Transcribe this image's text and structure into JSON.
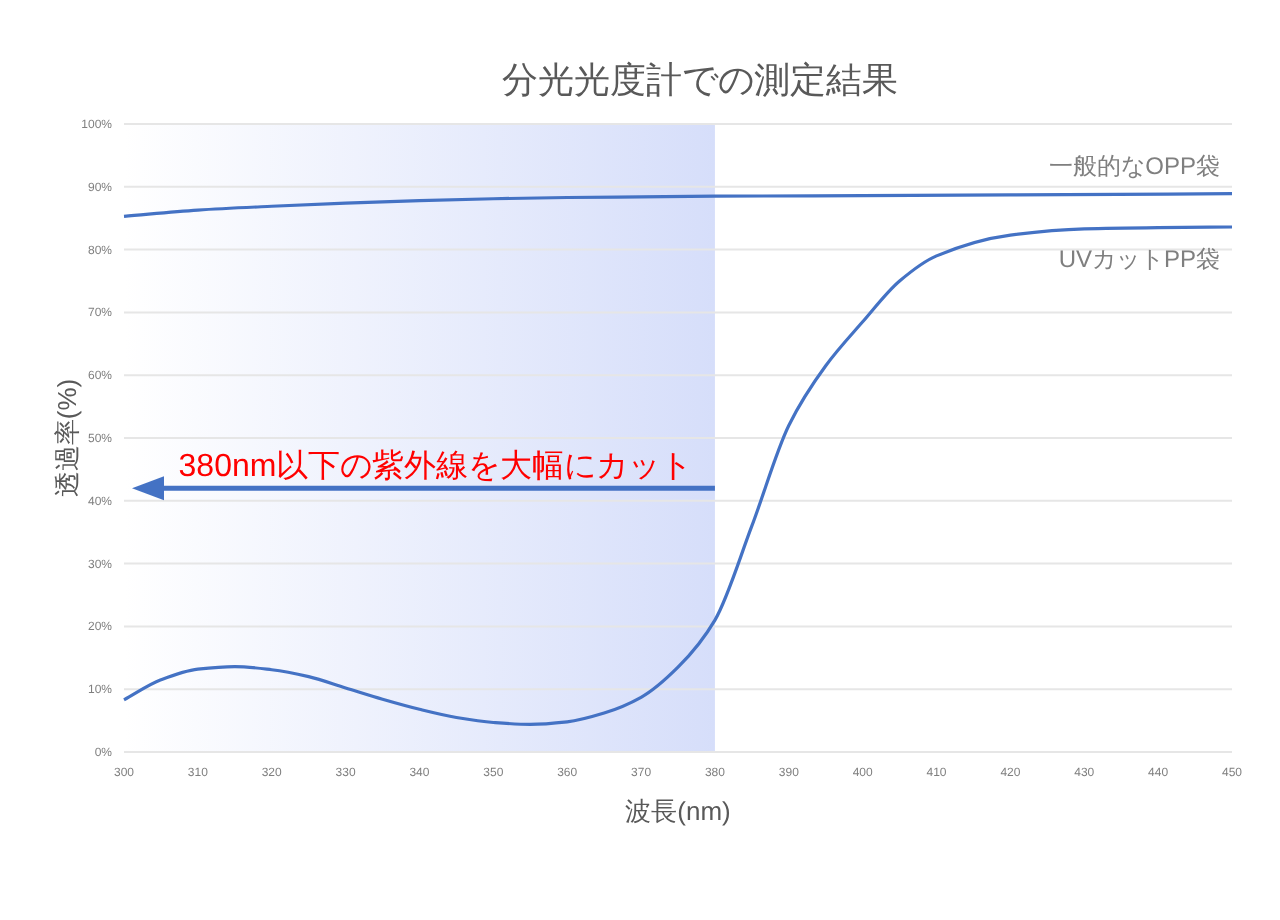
{
  "chart_data": {
    "type": "line",
    "title": "分光光度計での測定結果",
    "xlabel": "波長(nm)",
    "ylabel": "透過率(%)",
    "xlim": [
      300,
      450
    ],
    "xticks": [
      300,
      310,
      320,
      330,
      340,
      350,
      360,
      370,
      380,
      390,
      400,
      410,
      420,
      430,
      440,
      450
    ],
    "ylim": [
      0,
      100
    ],
    "yticks": [
      {
        "value": 0,
        "label": "0%"
      },
      {
        "value": 10,
        "label": "10%"
      },
      {
        "value": 20,
        "label": "20%"
      },
      {
        "value": 30,
        "label": "30%"
      },
      {
        "value": 40,
        "label": "40%"
      },
      {
        "value": 50,
        "label": "50%"
      },
      {
        "value": 60,
        "label": "60%"
      },
      {
        "value": 70,
        "label": "70%"
      },
      {
        "value": 80,
        "label": "80%"
      },
      {
        "value": 90,
        "label": "90%"
      },
      {
        "value": 100,
        "label": "100%"
      }
    ],
    "grid": "y",
    "legend": false,
    "line_style": "solid",
    "series": [
      {
        "name": "一般的なOPP袋",
        "color": "#4472c4",
        "x": [
          300,
          310,
          320,
          330,
          340,
          350,
          360,
          370,
          380,
          400,
          420,
          450
        ],
        "values": [
          85.3,
          86.3,
          86.9,
          87.4,
          87.8,
          88.1,
          88.3,
          88.4,
          88.5,
          88.6,
          88.7,
          88.9
        ]
      },
      {
        "name": "UVカットPP袋",
        "color": "#4472c4",
        "x": [
          300,
          305,
          310,
          315,
          320,
          325,
          330,
          335,
          340,
          345,
          350,
          355,
          360,
          365,
          370,
          375,
          380,
          385,
          390,
          395,
          400,
          405,
          410,
          420,
          430,
          440,
          450
        ],
        "values": [
          8.3,
          11.5,
          13.2,
          13.6,
          13.1,
          12,
          10.2,
          8.4,
          6.8,
          5.5,
          4.7,
          4.4,
          4.8,
          6.2,
          8.7,
          13.5,
          21,
          36,
          52,
          61.5,
          68.5,
          75,
          79,
          82.3,
          83.3,
          83.5,
          83.6
        ]
      }
    ],
    "bands": [
      {
        "axis": "x",
        "from": 300,
        "to": 380,
        "color": "#d6defa"
      }
    ],
    "annotations": [
      {
        "text": "380nm以下の紫外線を大幅にカット",
        "x": 380,
        "y": 42
      }
    ]
  }
}
